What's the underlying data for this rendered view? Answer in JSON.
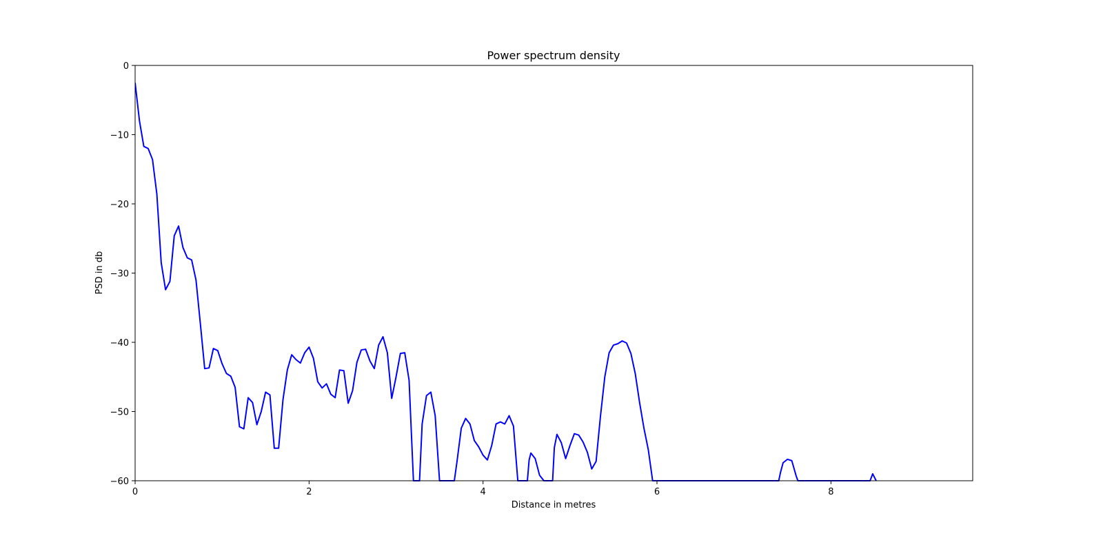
{
  "chart_data": {
    "type": "line",
    "title": "Power spectrum density",
    "xlabel": "Distance in metres",
    "ylabel": "PSD in db",
    "xlim": [
      0,
      9.63
    ],
    "ylim": [
      -60,
      0
    ],
    "grid": false,
    "x_ticks": [
      0,
      2,
      4,
      6,
      8
    ],
    "x_tick_labels": [
      "0",
      "2",
      "4",
      "6",
      "8"
    ],
    "y_ticks": [
      0,
      -10,
      -20,
      -30,
      -40,
      -50,
      -60
    ],
    "y_tick_labels": [
      "0",
      "−10",
      "−20",
      "−30",
      "−40",
      "−50",
      "−60"
    ],
    "series": [
      {
        "color": "#0000ff",
        "x": [
          0.0,
          0.05,
          0.1,
          0.15,
          0.2,
          0.25,
          0.3,
          0.35,
          0.4,
          0.45,
          0.5,
          0.55,
          0.6,
          0.65,
          0.7,
          0.75,
          0.8,
          0.85,
          0.9,
          0.95,
          1.0,
          1.05,
          1.1,
          1.15,
          1.2,
          1.25,
          1.3,
          1.35,
          1.4,
          1.45,
          1.5,
          1.55,
          1.6,
          1.65,
          1.7,
          1.75,
          1.8,
          1.85,
          1.9,
          1.95,
          2.0,
          2.05,
          2.1,
          2.15,
          2.2,
          2.25,
          2.3,
          2.35,
          2.4,
          2.45,
          2.5,
          2.55,
          2.6,
          2.65,
          2.7,
          2.75,
          2.8,
          2.85,
          2.9,
          2.95,
          3.0,
          3.05,
          3.1,
          3.15,
          3.2,
          3.25,
          3.27,
          3.3,
          3.35,
          3.4,
          3.45,
          3.5,
          3.53,
          3.67,
          3.7,
          3.75,
          3.8,
          3.85,
          3.9,
          3.95,
          4.0,
          4.05,
          4.1,
          4.15,
          4.2,
          4.25,
          4.3,
          4.35,
          4.4,
          4.45,
          4.51,
          4.53,
          4.55,
          4.6,
          4.65,
          4.7,
          4.72,
          4.8,
          4.82,
          4.85,
          4.9,
          4.95,
          5.0,
          5.05,
          5.1,
          5.15,
          5.2,
          5.25,
          5.3,
          5.35,
          5.4,
          5.45,
          5.5,
          5.55,
          5.6,
          5.65,
          5.7,
          5.75,
          5.8,
          5.85,
          5.9,
          5.95,
          6.0,
          7.4,
          7.42,
          7.45,
          7.5,
          7.55,
          7.6,
          7.62,
          8.45,
          8.48,
          8.52
        ],
        "values": [
          -2.5,
          -8.0,
          -11.7,
          -12.0,
          -13.6,
          -18.6,
          -28.5,
          -32.4,
          -31.2,
          -24.6,
          -23.2,
          -26.3,
          -27.8,
          -28.1,
          -31.0,
          -37.3,
          -43.8,
          -43.7,
          -40.9,
          -41.2,
          -43.1,
          -44.5,
          -44.9,
          -46.5,
          -52.2,
          -52.5,
          -48.0,
          -48.7,
          -51.9,
          -50.0,
          -47.2,
          -47.6,
          -55.3,
          -55.3,
          -48.3,
          -44.0,
          -41.8,
          -42.5,
          -43.0,
          -41.5,
          -40.7,
          -42.3,
          -45.7,
          -46.6,
          -46.0,
          -47.5,
          -48.0,
          -44.0,
          -44.1,
          -48.8,
          -47.0,
          -42.9,
          -41.1,
          -41.0,
          -42.7,
          -43.8,
          -40.4,
          -39.2,
          -41.5,
          -48.1,
          -45.0,
          -41.6,
          -41.5,
          -45.5,
          -60.0,
          -60.0,
          -60.0,
          -51.8,
          -47.7,
          -47.2,
          -50.6,
          -60.0,
          -60.0,
          -60.0,
          -57.3,
          -52.4,
          -51.0,
          -51.8,
          -54.2,
          -55.1,
          -56.3,
          -57.0,
          -54.9,
          -51.8,
          -51.5,
          -51.8,
          -50.6,
          -52.1,
          -60.0,
          -60.0,
          -60.0,
          -57.0,
          -56.0,
          -56.8,
          -59.2,
          -60.0,
          -60.0,
          -60.0,
          -55.2,
          -53.3,
          -54.5,
          -56.8,
          -54.9,
          -53.2,
          -53.4,
          -54.4,
          -55.9,
          -58.3,
          -57.2,
          -50.7,
          -45.0,
          -41.5,
          -40.4,
          -40.2,
          -39.8,
          -40.1,
          -41.6,
          -44.5,
          -48.7,
          -52.4,
          -55.5,
          -60.0,
          -60.0,
          -60.0,
          -58.8,
          -57.4,
          -56.9,
          -57.1,
          -59.3,
          -60.0,
          -60.0,
          -59.0,
          -60.0
        ]
      }
    ]
  }
}
